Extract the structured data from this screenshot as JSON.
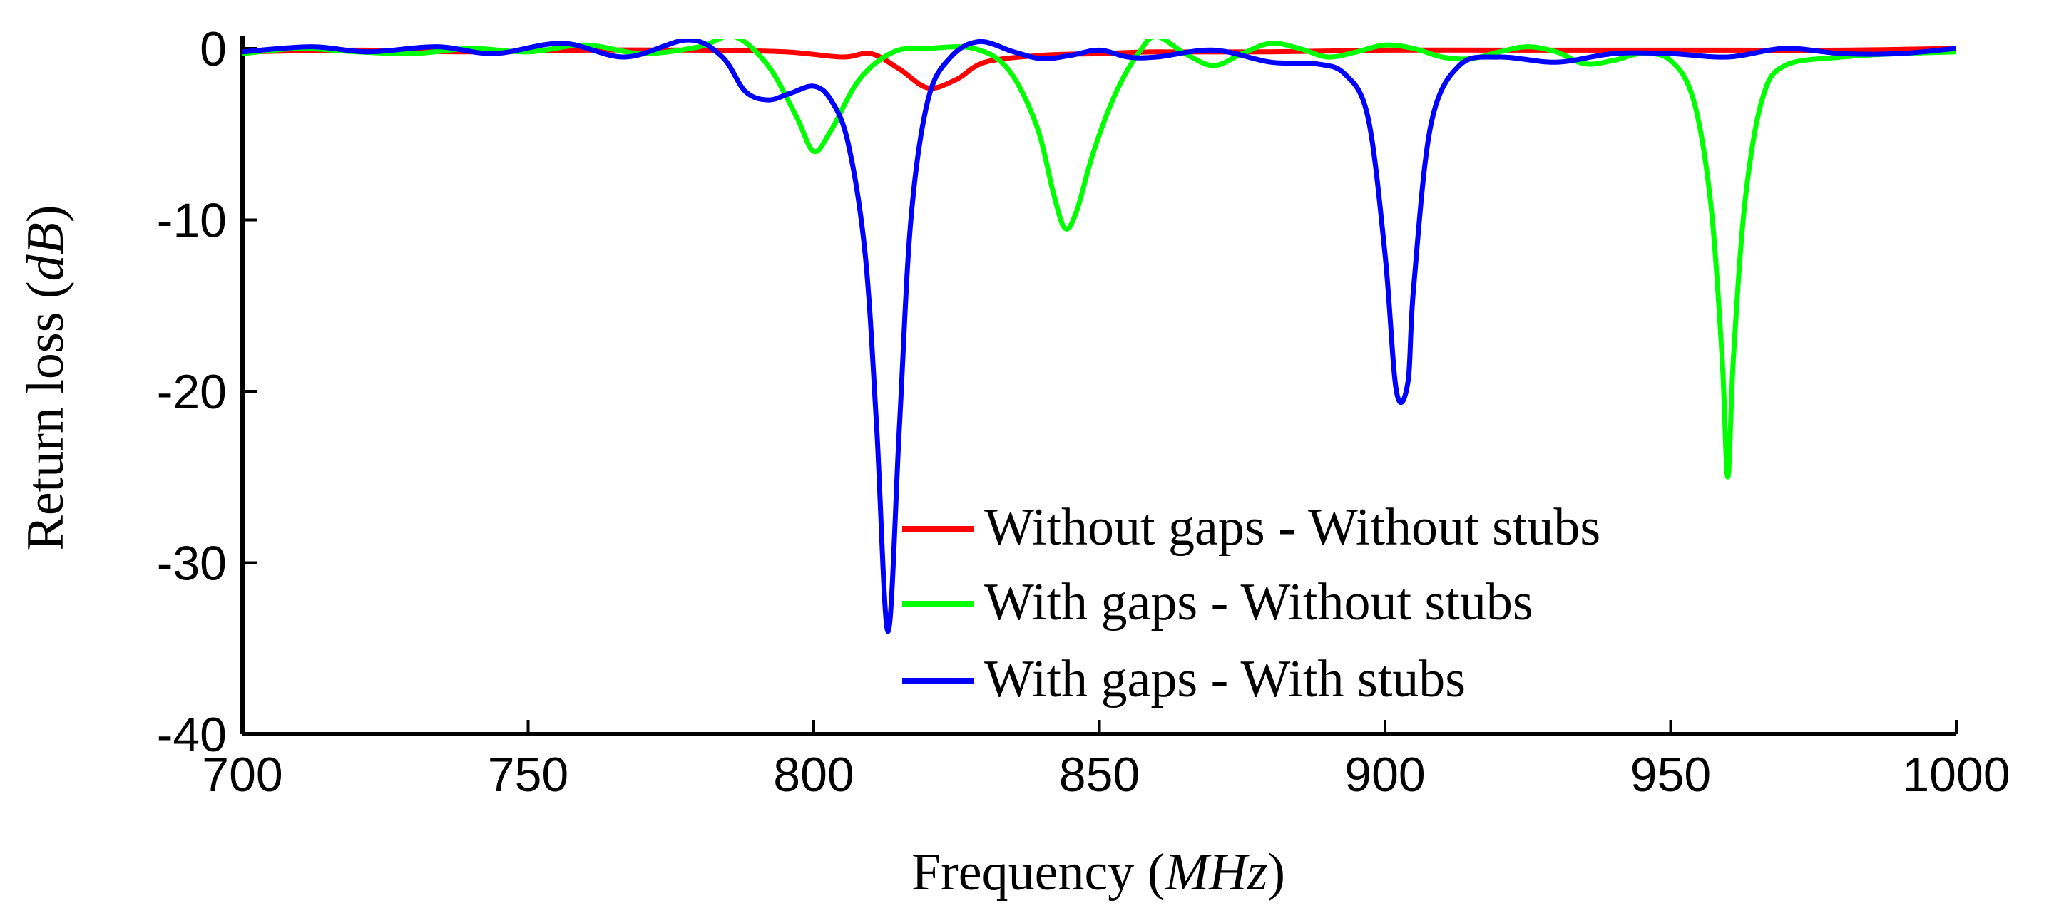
{
  "chart_data": {
    "type": "line",
    "xlabel": "Frequency",
    "xlabel_unit": "MHz",
    "ylabel": "Return loss",
    "ylabel_unit": "dB",
    "xlim": [
      700,
      1000
    ],
    "ylim": [
      -40,
      1.5
    ],
    "xticks": [
      700,
      750,
      800,
      850,
      900,
      950,
      1000
    ],
    "xtick_labels": [
      "700",
      "750",
      "800",
      "850",
      "900",
      "950",
      "1000"
    ],
    "yticks": [
      0,
      -10,
      -20,
      -30,
      -40
    ],
    "ytick_labels": [
      "0",
      "-10",
      "-20",
      "-30",
      "-40"
    ],
    "legend_position": "bottom-right-center",
    "series": [
      {
        "name": "Without gaps - Without stubs",
        "color": "#ff0000",
        "points": [
          [
            700,
            -0.2
          ],
          [
            720,
            -0.1
          ],
          [
            740,
            -0.2
          ],
          [
            760,
            -0.1
          ],
          [
            780,
            -0.1
          ],
          [
            795,
            -0.2
          ],
          [
            805,
            -0.5
          ],
          [
            810,
            -0.3
          ],
          [
            815,
            -1.2
          ],
          [
            820,
            -2.3
          ],
          [
            825,
            -1.8
          ],
          [
            830,
            -0.8
          ],
          [
            840,
            -0.4
          ],
          [
            850,
            -0.3
          ],
          [
            860,
            -0.2
          ],
          [
            880,
            -0.2
          ],
          [
            900,
            -0.1
          ],
          [
            920,
            -0.1
          ],
          [
            940,
            -0.1
          ],
          [
            960,
            -0.1
          ],
          [
            980,
            -0.1
          ],
          [
            1000,
            0.0
          ]
        ]
      },
      {
        "name": "With gaps - Without stubs",
        "color": "#00ff00",
        "points": [
          [
            700,
            -0.3
          ],
          [
            710,
            0.0
          ],
          [
            720,
            -0.2
          ],
          [
            730,
            -0.3
          ],
          [
            740,
            0.0
          ],
          [
            750,
            -0.2
          ],
          [
            760,
            0.2
          ],
          [
            770,
            -0.3
          ],
          [
            780,
            0.1
          ],
          [
            786,
            0.7
          ],
          [
            792,
            -1.0
          ],
          [
            797,
            -4.0
          ],
          [
            800,
            -6.0
          ],
          [
            803,
            -4.8
          ],
          [
            808,
            -1.8
          ],
          [
            814,
            -0.2
          ],
          [
            820,
            0.0
          ],
          [
            828,
            0.0
          ],
          [
            834,
            -1.2
          ],
          [
            839,
            -4.5
          ],
          [
            842,
            -8.5
          ],
          [
            844,
            -10.5
          ],
          [
            846,
            -9.5
          ],
          [
            849,
            -6.0
          ],
          [
            853,
            -2.5
          ],
          [
            857,
            -0.2
          ],
          [
            860,
            0.7
          ],
          [
            865,
            -0.3
          ],
          [
            870,
            -1.0
          ],
          [
            875,
            -0.3
          ],
          [
            880,
            0.3
          ],
          [
            885,
            0.0
          ],
          [
            890,
            -0.5
          ],
          [
            895,
            -0.2
          ],
          [
            900,
            0.2
          ],
          [
            905,
            0.0
          ],
          [
            910,
            -0.5
          ],
          [
            915,
            -0.6
          ],
          [
            920,
            -0.2
          ],
          [
            925,
            0.1
          ],
          [
            930,
            -0.2
          ],
          [
            935,
            -0.9
          ],
          [
            940,
            -0.7
          ],
          [
            945,
            -0.3
          ],
          [
            950,
            -0.7
          ],
          [
            954,
            -3.0
          ],
          [
            957,
            -9.0
          ],
          [
            959,
            -18.0
          ],
          [
            960,
            -25.0
          ],
          [
            961,
            -18.0
          ],
          [
            963,
            -9.0
          ],
          [
            966,
            -3.0
          ],
          [
            970,
            -1.0
          ],
          [
            980,
            -0.5
          ],
          [
            990,
            -0.3
          ],
          [
            1000,
            -0.2
          ]
        ]
      },
      {
        "name": "With gaps - With stubs",
        "color": "#0000ff",
        "points": [
          [
            700,
            -0.2
          ],
          [
            712,
            0.1
          ],
          [
            722,
            -0.2
          ],
          [
            734,
            0.1
          ],
          [
            744,
            -0.3
          ],
          [
            756,
            0.3
          ],
          [
            767,
            -0.5
          ],
          [
            778,
            0.5
          ],
          [
            784,
            -0.5
          ],
          [
            788,
            -2.5
          ],
          [
            792,
            -3.0
          ],
          [
            796,
            -2.6
          ],
          [
            800,
            -2.2
          ],
          [
            803,
            -3.0
          ],
          [
            806,
            -5.5
          ],
          [
            809,
            -12.0
          ],
          [
            811,
            -22.0
          ],
          [
            813,
            -34.0
          ],
          [
            815,
            -22.0
          ],
          [
            817,
            -10.0
          ],
          [
            820,
            -3.0
          ],
          [
            824,
            -0.5
          ],
          [
            829,
            0.4
          ],
          [
            835,
            -0.2
          ],
          [
            840,
            -0.6
          ],
          [
            845,
            -0.4
          ],
          [
            850,
            -0.1
          ],
          [
            855,
            -0.5
          ],
          [
            860,
            -0.5
          ],
          [
            870,
            -0.1
          ],
          [
            880,
            -0.8
          ],
          [
            888,
            -0.9
          ],
          [
            893,
            -1.5
          ],
          [
            897,
            -4.0
          ],
          [
            900,
            -12.0
          ],
          [
            902,
            -20.0
          ],
          [
            904,
            -19.5
          ],
          [
            905,
            -14.0
          ],
          [
            908,
            -4.5
          ],
          [
            913,
            -1.0
          ],
          [
            920,
            -0.5
          ],
          [
            930,
            -0.8
          ],
          [
            940,
            -0.3
          ],
          [
            950,
            -0.3
          ],
          [
            960,
            -0.5
          ],
          [
            970,
            0.0
          ],
          [
            980,
            -0.3
          ],
          [
            990,
            -0.3
          ],
          [
            1000,
            0.0
          ]
        ]
      }
    ]
  }
}
